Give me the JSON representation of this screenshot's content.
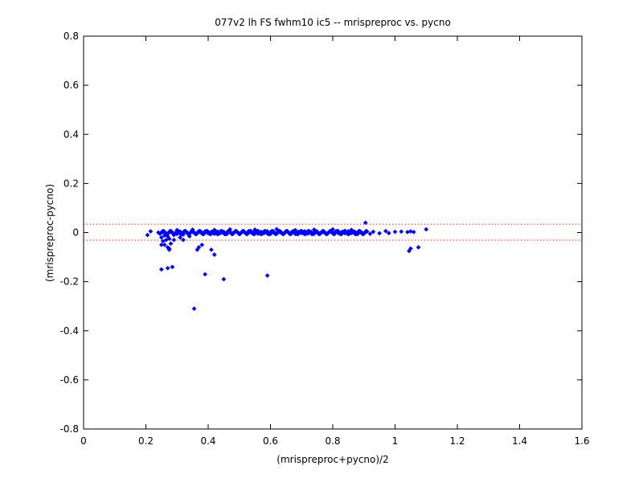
{
  "chart_data": {
    "type": "scatter",
    "title": "077v2 lh FS fwhm10 ic5 -- mrispreproc vs. pycno",
    "xlabel": "(mrispreproc+pycno)/2",
    "ylabel": "(mrispreproc-pycno)",
    "xlim": [
      0,
      1.6
    ],
    "ylim": [
      -0.8,
      0.8
    ],
    "xticks": [
      0,
      0.2,
      0.4,
      0.6,
      0.8,
      1.0,
      1.2,
      1.4,
      1.6
    ],
    "xtick_labels": [
      "0",
      "0.2",
      "0.4",
      "0.6",
      "0.8",
      "1",
      "1.2",
      "1.4",
      "1.6"
    ],
    "yticks": [
      -0.8,
      -0.6,
      -0.4,
      -0.2,
      0,
      0.2,
      0.4,
      0.6,
      0.8
    ],
    "ytick_labels": [
      "-0.8",
      "-0.6",
      "-0.4",
      "-0.2",
      "0",
      "0.2",
      "0.4",
      "0.6",
      "0.8"
    ],
    "grid": false,
    "reference_lines": [
      0.034,
      -0.031
    ],
    "colors": {
      "points": "#0000ff",
      "reference_lines": "#ff0000",
      "axes": "#000000"
    },
    "series": [
      {
        "x": [
          0.205,
          0.215,
          0.24,
          0.245,
          0.25,
          0.255,
          0.26,
          0.265,
          0.27,
          0.275,
          0.28,
          0.29,
          0.3,
          0.31,
          0.32,
          0.33,
          0.34,
          0.35,
          0.36,
          0.37,
          0.38,
          0.39,
          0.4,
          0.41,
          0.42,
          0.43,
          0.44,
          0.45,
          0.46,
          0.47,
          0.48,
          0.49,
          0.5,
          0.51,
          0.52,
          0.53,
          0.54,
          0.55,
          0.56,
          0.57,
          0.58,
          0.59,
          0.6,
          0.61,
          0.62,
          0.63,
          0.64,
          0.65,
          0.66,
          0.67,
          0.68,
          0.69,
          0.7,
          0.71,
          0.72,
          0.73,
          0.74,
          0.75,
          0.76,
          0.77,
          0.78,
          0.79,
          0.8,
          0.81,
          0.82,
          0.83,
          0.84,
          0.85,
          0.86,
          0.87,
          0.88,
          0.89,
          0.9,
          0.91,
          0.92,
          0.93,
          0.95,
          0.97,
          0.98,
          1.0,
          1.02,
          1.04,
          1.05,
          1.06,
          1.1,
          0.3,
          0.35,
          0.42,
          0.47,
          0.55,
          0.62,
          0.68,
          0.74,
          0.8,
          0.86,
          0.905,
          0.255,
          0.26,
          0.27,
          0.275,
          0.28,
          0.29,
          0.31,
          0.32,
          0.34,
          0.25,
          0.27,
          0.285,
          0.25,
          0.275,
          0.355,
          0.365,
          0.37,
          0.38,
          0.39,
          0.41,
          0.42,
          0.45,
          0.59,
          1.045,
          1.05,
          1.075
        ],
        "y": [
          -0.01,
          0.005,
          0.0,
          -0.005,
          -0.02,
          0.002,
          -0.012,
          -0.03,
          -0.015,
          -0.025,
          0.003,
          -0.01,
          -0.006,
          0.004,
          -0.008,
          0.003,
          -0.005,
          0.004,
          -0.006,
          0.002,
          -0.004,
          0.005,
          -0.003,
          0.003,
          -0.005,
          0.004,
          -0.002,
          0.003,
          -0.006,
          0.004,
          -0.002,
          0.005,
          -0.004,
          0.003,
          -0.003,
          0.006,
          -0.002,
          0.004,
          -0.005,
          0.003,
          -0.002,
          0.005,
          -0.006,
          0.004,
          -0.003,
          0.002,
          -0.005,
          0.005,
          -0.003,
          0.004,
          -0.006,
          0.003,
          -0.002,
          0.005,
          -0.004,
          0.003,
          -0.005,
          0.004,
          -0.003,
          0.002,
          -0.006,
          0.004,
          -0.002,
          0.005,
          -0.004,
          0.003,
          -0.003,
          0.005,
          -0.002,
          0.004,
          -0.006,
          0.003,
          -0.002,
          0.004,
          -0.005,
          0.003,
          -0.003,
          0.006,
          -0.002,
          0.003,
          0.004,
          0.002,
          0.005,
          0.002,
          0.013,
          0.01,
          0.012,
          0.011,
          0.013,
          0.012,
          0.014,
          0.01,
          0.012,
          0.013,
          0.011,
          0.04,
          -0.035,
          -0.05,
          -0.06,
          -0.07,
          -0.045,
          -0.03,
          -0.02,
          -0.03,
          -0.015,
          -0.15,
          -0.145,
          -0.14,
          -0.05,
          -0.065,
          -0.31,
          -0.07,
          -0.06,
          -0.05,
          -0.17,
          -0.07,
          -0.09,
          -0.19,
          -0.175,
          -0.075,
          -0.065,
          -0.06
        ]
      }
    ]
  }
}
